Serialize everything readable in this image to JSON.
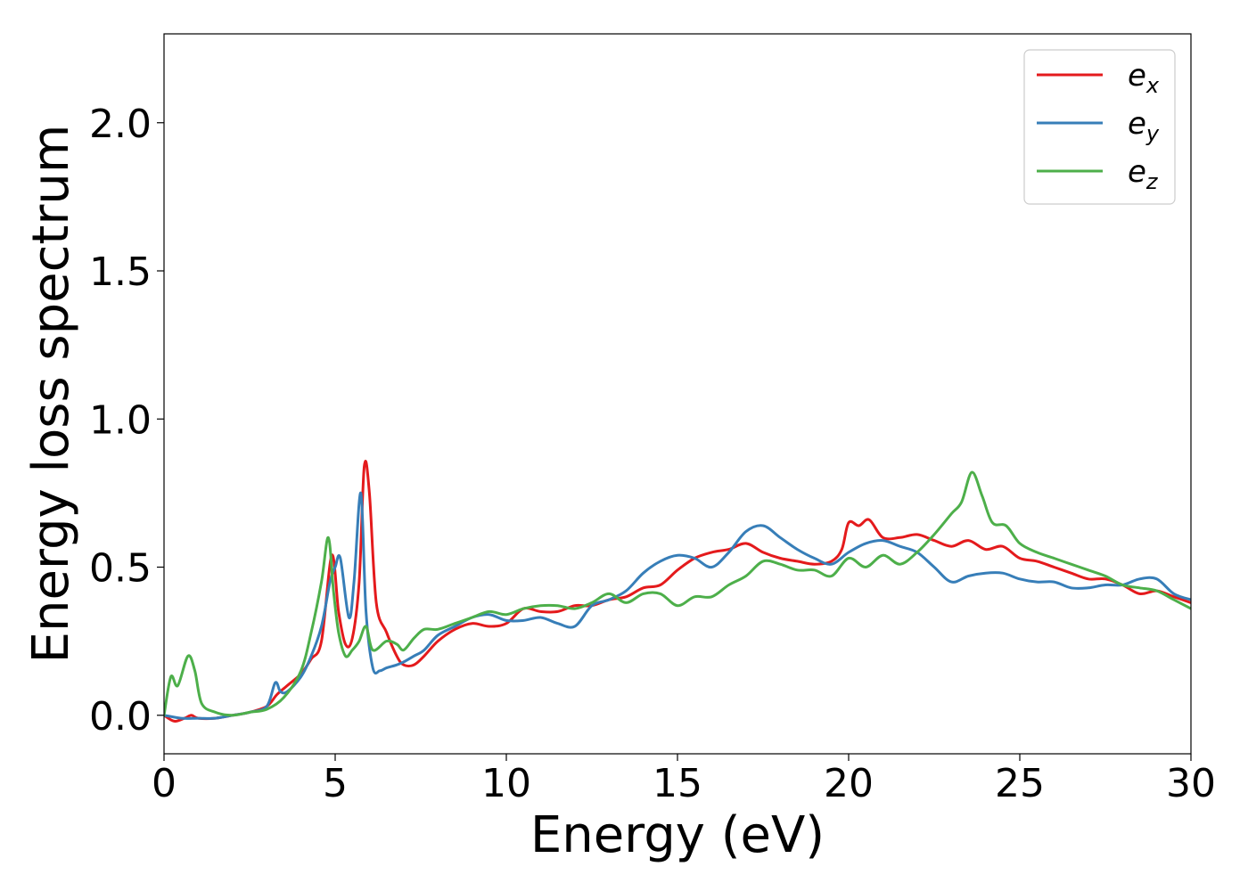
{
  "chart_data": {
    "type": "line",
    "xlabel": "Energy (eV)",
    "ylabel": "Energy loss spectrum",
    "xlim": [
      0,
      30
    ],
    "ylim": [
      -0.13,
      2.3
    ],
    "xticks": [
      0,
      5,
      10,
      15,
      20,
      25,
      30
    ],
    "xtick_labels": [
      "0",
      "5",
      "10",
      "15",
      "20",
      "25",
      "30"
    ],
    "yticks": [
      0.0,
      0.5,
      1.0,
      1.5,
      2.0
    ],
    "ytick_labels": [
      "0.0",
      "0.5",
      "1.0",
      "1.5",
      "2.0"
    ],
    "grid": false,
    "legend_position": "top-right",
    "series": [
      {
        "name": "e",
        "subscript": "x",
        "color": "#e41a1c",
        "x": [
          0,
          0.3,
          0.6,
          0.8,
          1.0,
          1.5,
          2.0,
          2.5,
          3.0,
          3.3,
          3.6,
          4.0,
          4.3,
          4.6,
          4.9,
          5.1,
          5.3,
          5.5,
          5.7,
          5.85,
          6.0,
          6.2,
          6.5,
          6.8,
          7.0,
          7.3,
          7.6,
          8.0,
          8.5,
          9.0,
          9.5,
          10.0,
          10.5,
          11.0,
          11.5,
          12.0,
          12.5,
          13.0,
          13.5,
          14.0,
          14.5,
          15.0,
          15.5,
          16.0,
          16.5,
          17.0,
          17.5,
          18.0,
          18.5,
          19.0,
          19.5,
          19.8,
          20.0,
          20.3,
          20.6,
          21.0,
          21.5,
          22.0,
          22.5,
          23.0,
          23.5,
          24.0,
          24.5,
          25.0,
          25.5,
          26.0,
          26.5,
          27.0,
          27.5,
          28.0,
          28.5,
          29.0,
          29.5,
          30.0
        ],
        "values": [
          0.0,
          -0.02,
          -0.01,
          0.0,
          -0.01,
          -0.01,
          0.0,
          0.01,
          0.03,
          0.07,
          0.1,
          0.14,
          0.19,
          0.25,
          0.54,
          0.35,
          0.24,
          0.26,
          0.45,
          0.84,
          0.75,
          0.38,
          0.28,
          0.2,
          0.17,
          0.17,
          0.2,
          0.25,
          0.29,
          0.31,
          0.3,
          0.31,
          0.36,
          0.35,
          0.35,
          0.37,
          0.37,
          0.39,
          0.4,
          0.43,
          0.44,
          0.49,
          0.53,
          0.55,
          0.56,
          0.58,
          0.55,
          0.53,
          0.52,
          0.51,
          0.52,
          0.56,
          0.65,
          0.64,
          0.66,
          0.6,
          0.6,
          0.61,
          0.59,
          0.57,
          0.59,
          0.56,
          0.57,
          0.53,
          0.52,
          0.5,
          0.48,
          0.46,
          0.46,
          0.44,
          0.41,
          0.42,
          0.4,
          0.38
        ]
      },
      {
        "name": "e",
        "subscript": "y",
        "color": "#377eb8",
        "x": [
          0,
          0.5,
          1.0,
          1.5,
          2.0,
          2.5,
          3.0,
          3.25,
          3.4,
          3.6,
          4.0,
          4.3,
          4.6,
          4.85,
          5.0,
          5.15,
          5.4,
          5.55,
          5.75,
          5.9,
          6.1,
          6.3,
          6.5,
          6.8,
          7.0,
          7.3,
          7.6,
          8.0,
          8.5,
          9.0,
          9.5,
          10.0,
          10.5,
          11.0,
          11.5,
          12.0,
          12.5,
          13.0,
          13.5,
          14.0,
          14.5,
          15.0,
          15.5,
          16.0,
          16.5,
          17.0,
          17.5,
          18.0,
          18.5,
          19.0,
          19.5,
          20.0,
          20.5,
          21.0,
          21.5,
          22.0,
          22.5,
          23.0,
          23.5,
          24.0,
          24.5,
          25.0,
          25.5,
          26.0,
          26.5,
          27.0,
          27.5,
          28.0,
          28.5,
          29.0,
          29.5,
          30.0
        ],
        "values": [
          0.0,
          -0.01,
          -0.01,
          -0.01,
          0.0,
          0.01,
          0.03,
          0.11,
          0.08,
          0.08,
          0.13,
          0.2,
          0.3,
          0.45,
          0.5,
          0.53,
          0.33,
          0.45,
          0.75,
          0.35,
          0.16,
          0.15,
          0.16,
          0.17,
          0.18,
          0.2,
          0.22,
          0.27,
          0.3,
          0.33,
          0.34,
          0.32,
          0.32,
          0.33,
          0.31,
          0.3,
          0.37,
          0.39,
          0.42,
          0.48,
          0.52,
          0.54,
          0.53,
          0.5,
          0.55,
          0.62,
          0.64,
          0.6,
          0.56,
          0.53,
          0.51,
          0.55,
          0.58,
          0.59,
          0.57,
          0.55,
          0.5,
          0.45,
          0.47,
          0.48,
          0.48,
          0.46,
          0.45,
          0.45,
          0.43,
          0.43,
          0.44,
          0.44,
          0.46,
          0.46,
          0.41,
          0.39
        ]
      },
      {
        "name": "e",
        "subscript": "z",
        "color": "#4daf4a",
        "x": [
          0,
          0.2,
          0.4,
          0.7,
          0.9,
          1.1,
          1.5,
          2.0,
          2.5,
          3.0,
          3.5,
          4.0,
          4.3,
          4.6,
          4.8,
          4.95,
          5.1,
          5.3,
          5.5,
          5.7,
          5.9,
          6.1,
          6.5,
          6.8,
          7.0,
          7.3,
          7.6,
          8.0,
          8.5,
          9.0,
          9.5,
          10.0,
          10.5,
          11.0,
          11.5,
          12.0,
          12.5,
          13.0,
          13.5,
          14.0,
          14.5,
          15.0,
          15.5,
          16.0,
          16.5,
          17.0,
          17.5,
          18.0,
          18.5,
          19.0,
          19.5,
          20.0,
          20.5,
          21.0,
          21.5,
          22.0,
          22.5,
          23.0,
          23.3,
          23.6,
          23.9,
          24.2,
          24.6,
          25.0,
          25.5,
          26.0,
          26.5,
          27.0,
          27.5,
          28.0,
          28.5,
          29.0,
          29.5,
          30.0
        ],
        "values": [
          0.0,
          0.13,
          0.1,
          0.2,
          0.15,
          0.04,
          0.01,
          0.0,
          0.01,
          0.02,
          0.06,
          0.15,
          0.28,
          0.45,
          0.6,
          0.42,
          0.28,
          0.2,
          0.22,
          0.25,
          0.3,
          0.22,
          0.25,
          0.24,
          0.22,
          0.26,
          0.29,
          0.29,
          0.31,
          0.33,
          0.35,
          0.34,
          0.36,
          0.37,
          0.37,
          0.36,
          0.38,
          0.41,
          0.38,
          0.41,
          0.41,
          0.37,
          0.4,
          0.4,
          0.44,
          0.47,
          0.52,
          0.51,
          0.49,
          0.49,
          0.47,
          0.53,
          0.5,
          0.54,
          0.51,
          0.55,
          0.61,
          0.68,
          0.72,
          0.82,
          0.74,
          0.65,
          0.64,
          0.58,
          0.55,
          0.53,
          0.51,
          0.49,
          0.47,
          0.44,
          0.43,
          0.42,
          0.39,
          0.36
        ]
      }
    ]
  }
}
